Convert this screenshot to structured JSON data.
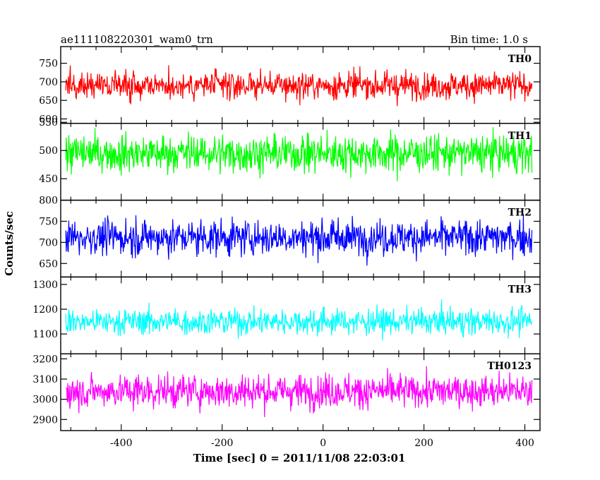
{
  "chart_data": {
    "type": "line",
    "title_left": "ae111108220301_wam0_trn",
    "title_right": "Bin time: 1.0 s",
    "xlabel": "Time [sec] 0 = 2011/11/08 22:03:01",
    "ylabel": "Counts/sec",
    "xlim": [
      -520,
      430
    ],
    "xticks": [
      -400,
      -200,
      0,
      200,
      400
    ],
    "x_range": [
      -510,
      414
    ],
    "bin_time_s": 1.0,
    "panels": [
      {
        "label": "TH0",
        "color": "#ff0000",
        "ylim": [
          588,
          795
        ],
        "yticks": [
          600,
          650,
          700,
          750
        ],
        "mean": 690,
        "spread": 25
      },
      {
        "label": "TH1",
        "color": "#00ff00",
        "ylim": [
          412,
          548
        ],
        "yticks": [
          450,
          500,
          550
        ],
        "mean": 495,
        "spread": 22
      },
      {
        "label": "TH2",
        "color": "#0000ff",
        "ylim": [
          618,
          800
        ],
        "yticks": [
          650,
          700,
          750,
          800
        ],
        "mean": 712,
        "spread": 28
      },
      {
        "label": "TH3",
        "color": "#00ffff",
        "ylim": [
          1020,
          1330
        ],
        "yticks": [
          1100,
          1200,
          1300
        ],
        "mean": 1150,
        "spread": 35
      },
      {
        "label": "TH0123",
        "color": "#ff00ff",
        "ylim": [
          2845,
          3225
        ],
        "yticks": [
          2900,
          3000,
          3100,
          3200
        ],
        "mean": 3040,
        "spread": 55
      }
    ]
  }
}
